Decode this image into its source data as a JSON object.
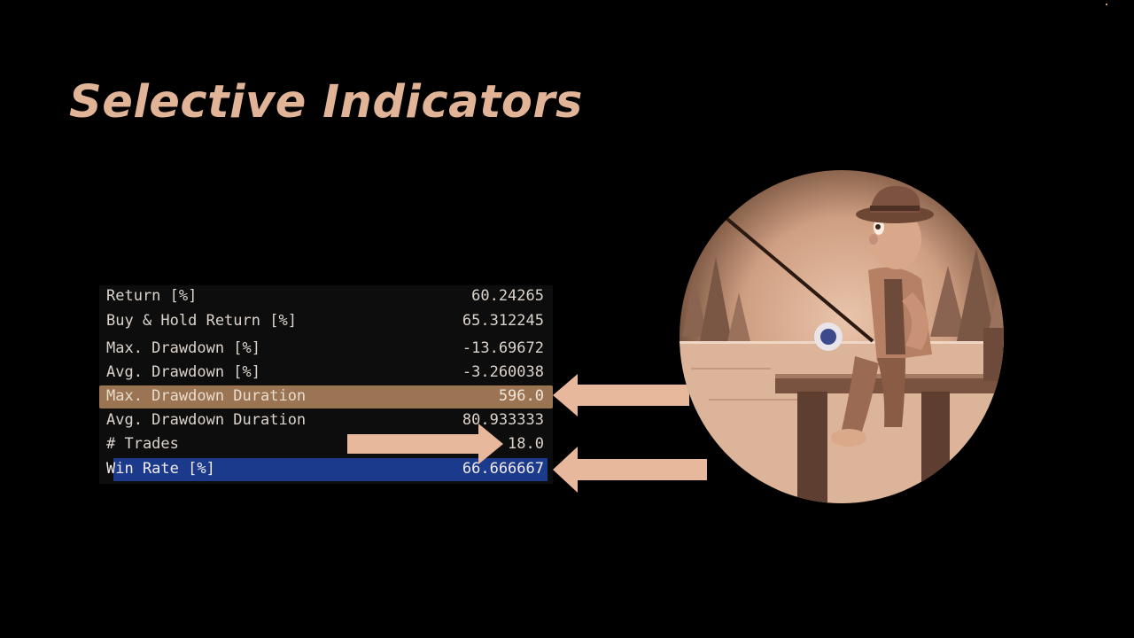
{
  "slide": {
    "title": "Selective Indicators"
  },
  "stats": [
    {
      "label": "Return [%]",
      "value": "60.24265",
      "highlight": "none"
    },
    {
      "label": "Buy & Hold Return [%]",
      "value": "65.312245",
      "highlight": "none"
    },
    {
      "label": "Max. Drawdown [%]",
      "value": "-13.69672",
      "highlight": "none"
    },
    {
      "label": "Avg. Drawdown [%]",
      "value": "-3.260038",
      "highlight": "none"
    },
    {
      "label": "Max. Drawdown Duration",
      "value": "596.0",
      "highlight": "tan"
    },
    {
      "label": "Avg. Drawdown Duration",
      "value": "80.933333",
      "highlight": "none"
    },
    {
      "label": "# Trades",
      "value": "18.0",
      "highlight": "none"
    },
    {
      "label": "Win Rate [%]",
      "value": "66.666667",
      "highlight": "blue"
    }
  ],
  "colors": {
    "background": "#000000",
    "title": "#e2b497",
    "arrow": "#e7b89c",
    "highlight_tan": "#9a7453",
    "highlight_blue": "#1c3a8c",
    "scene_tone": "#d9a98a"
  },
  "illustration": {
    "subject": "fisherman-on-dock-icon"
  }
}
